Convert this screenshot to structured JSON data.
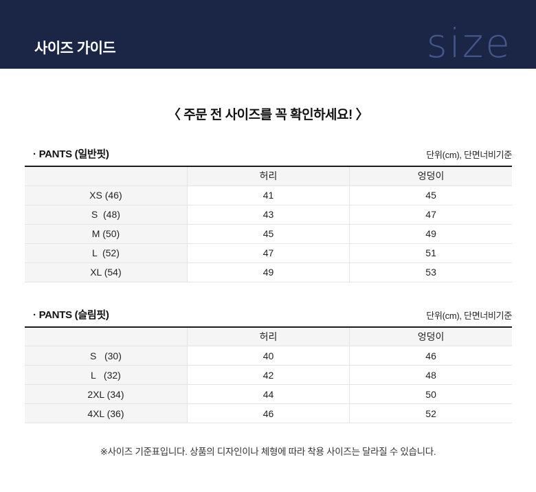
{
  "header": {
    "title": "사이즈 가이드",
    "watermark": "size"
  },
  "notice": "〈 주문 전 사이즈를 꼭 확인하세요! 〉",
  "colors": {
    "header_bg": "#1b2646",
    "watermark_text": "#44568a",
    "cell_gray": "#f5f5f5",
    "cell_border": "#e4e4e4",
    "table_top_border": "#1a1a1a"
  },
  "tables": [
    {
      "title": "· PANTS (일반핏)",
      "unit_label": "단위(cm), 단면너비기준",
      "columns": {
        "size": "",
        "waist": "허리",
        "hip": "엉덩이"
      },
      "rows": [
        {
          "size": "XS (46)",
          "waist": "41",
          "hip": "45"
        },
        {
          "size": "S  (48)",
          "waist": "43",
          "hip": "47"
        },
        {
          "size": "M (50)",
          "waist": "45",
          "hip": "49"
        },
        {
          "size": "L  (52)",
          "waist": "47",
          "hip": "51"
        },
        {
          "size": "XL (54)",
          "waist": "49",
          "hip": "53"
        }
      ]
    },
    {
      "title": "· PANTS (슬림핏)",
      "unit_label": "단위(cm), 단면너비기준",
      "columns": {
        "size": "",
        "waist": "허리",
        "hip": "엉덩이"
      },
      "rows": [
        {
          "size": "S   (30)",
          "waist": "40",
          "hip": "46"
        },
        {
          "size": "L   (32)",
          "waist": "42",
          "hip": "48"
        },
        {
          "size": "2XL (34)",
          "waist": "44",
          "hip": "50"
        },
        {
          "size": "4XL (36)",
          "waist": "46",
          "hip": "52"
        }
      ]
    }
  ],
  "footer_note": "※사이즈 기준표입니다. 상품의 디자인이나 체형에 따라 착용 사이즈는 달라질 수 있습니다."
}
